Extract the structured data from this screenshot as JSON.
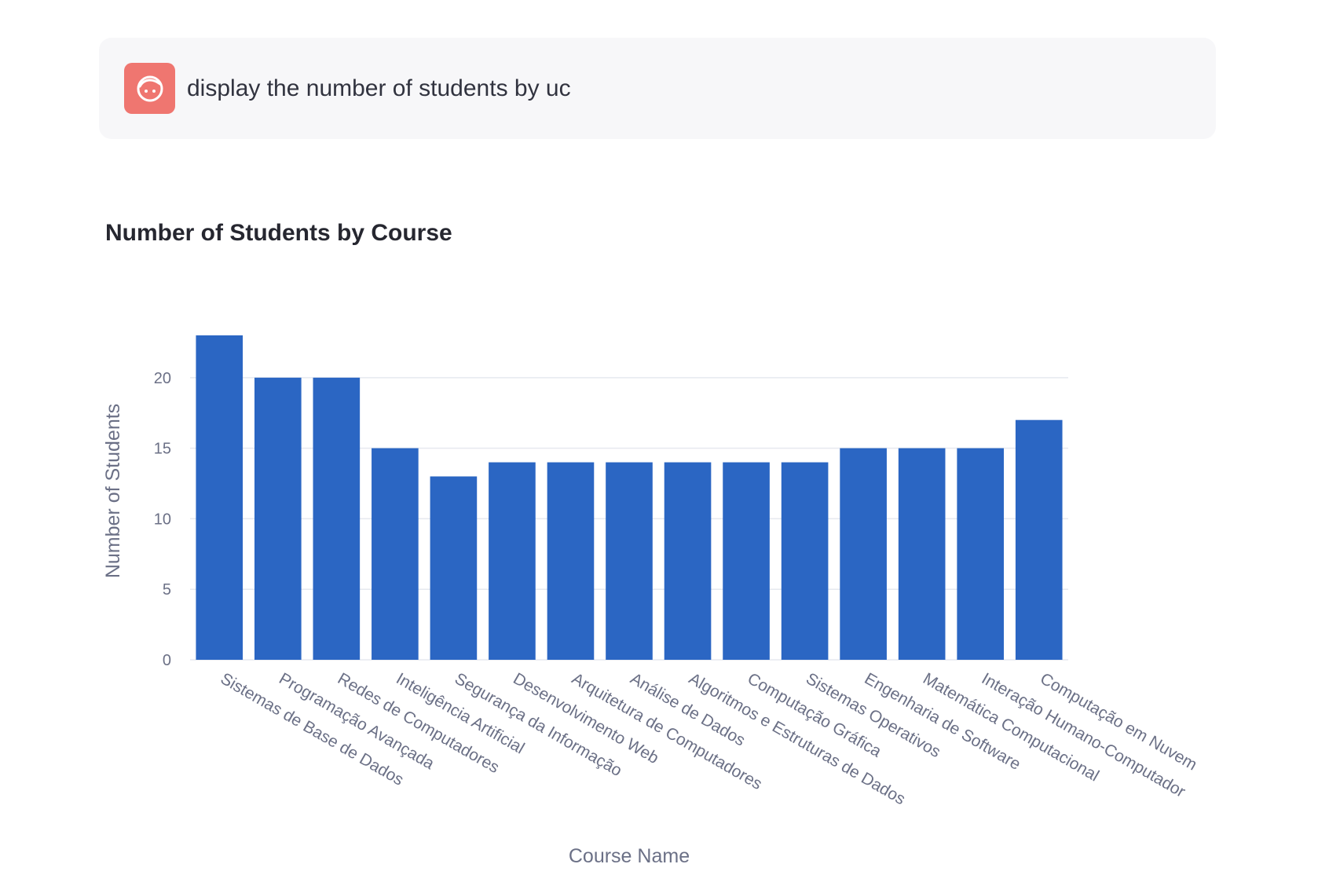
{
  "chat": {
    "avatar_icon": "user-face-icon",
    "message": "display the number of students by uc"
  },
  "colors": {
    "bar": "#2b66c3",
    "avatar_bg": "#ef7670",
    "axis_text": "#6b7086",
    "grid": "#e6e9ef"
  },
  "chart_data": {
    "type": "bar",
    "title": "Number of Students by Course",
    "xlabel": "Course Name",
    "ylabel": "Number of Students",
    "ylim": [
      0,
      24.5
    ],
    "yticks": [
      0,
      5,
      10,
      15,
      20
    ],
    "grid": true,
    "categories": [
      "Sistemas de Base de Dados",
      "Programação Avançada",
      "Redes de Computadores",
      "Inteligência Artificial",
      "Segurança da Informação",
      "Desenvolvimento Web",
      "Arquitetura de Computadores",
      "Análise de Dados",
      "Algoritmos e Estruturas de Dados",
      "Computação Gráfica",
      "Sistemas Operativos",
      "Engenharia de Software",
      "Matemática Computacional",
      "Interação Humano-Computador",
      "Computação em Nuvem"
    ],
    "values": [
      23,
      20,
      20,
      15,
      13,
      14,
      14,
      14,
      14,
      14,
      14,
      15,
      15,
      15,
      17
    ]
  }
}
